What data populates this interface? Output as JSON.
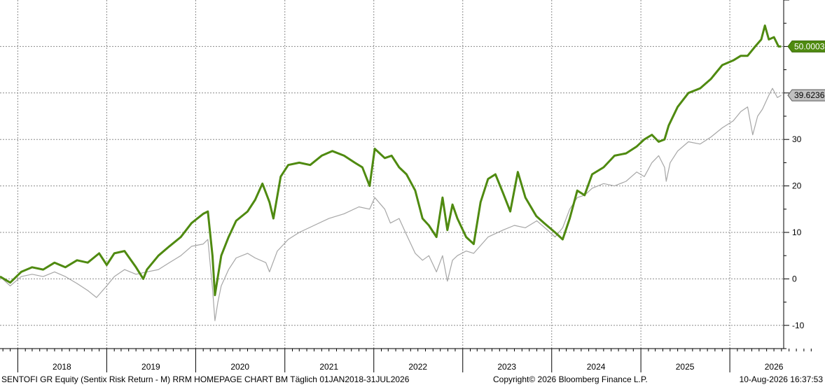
{
  "chart_data": {
    "type": "line",
    "x_range": [
      "2017-10-20",
      "2026-08-10"
    ],
    "ylim": [
      -15,
      60
    ],
    "y_ticks": [
      -10,
      0,
      10,
      20,
      30
    ],
    "x_tick_labels": [
      "2018",
      "2019",
      "2020",
      "2021",
      "2022",
      "2023",
      "2024",
      "2025",
      "2026"
    ],
    "grid": true,
    "series": [
      {
        "color": "#4f8a10",
        "last_value_label": "50.0003",
        "points": [
          [
            "2017-10-20",
            0.5
          ],
          [
            "2017-12-01",
            -0.8
          ],
          [
            "2018-01-15",
            1.5
          ],
          [
            "2018-03-01",
            2.5
          ],
          [
            "2018-04-15",
            2.0
          ],
          [
            "2018-06-01",
            3.5
          ],
          [
            "2018-07-15",
            2.5
          ],
          [
            "2018-09-01",
            4.0
          ],
          [
            "2018-10-15",
            3.5
          ],
          [
            "2018-12-01",
            5.5
          ],
          [
            "2019-01-01",
            3.0
          ],
          [
            "2019-02-01",
            5.5
          ],
          [
            "2019-03-15",
            6.0
          ],
          [
            "2019-05-01",
            2.5
          ],
          [
            "2019-05-31",
            0
          ],
          [
            "2019-06-15",
            2.0
          ],
          [
            "2019-08-01",
            5.0
          ],
          [
            "2019-09-15",
            7.0
          ],
          [
            "2019-11-01",
            9.0
          ],
          [
            "2019-12-15",
            12.0
          ],
          [
            "2020-02-01",
            14.0
          ],
          [
            "2020-02-20",
            14.5
          ],
          [
            "2020-03-10",
            5.0
          ],
          [
            "2020-03-20",
            -3.5
          ],
          [
            "2020-04-01",
            0.5
          ],
          [
            "2020-04-15",
            5.0
          ],
          [
            "2020-05-15",
            9.0
          ],
          [
            "2020-06-15",
            12.5
          ],
          [
            "2020-08-01",
            14.5
          ],
          [
            "2020-09-01",
            17.0
          ],
          [
            "2020-10-01",
            20.5
          ],
          [
            "2020-10-30",
            16.5
          ],
          [
            "2020-11-15",
            13.0
          ],
          [
            "2020-12-15",
            22.0
          ],
          [
            "2021-01-15",
            24.5
          ],
          [
            "2021-03-01",
            25.0
          ],
          [
            "2021-04-15",
            24.5
          ],
          [
            "2021-06-01",
            26.5
          ],
          [
            "2021-07-15",
            27.5
          ],
          [
            "2021-09-01",
            26.5
          ],
          [
            "2021-10-15",
            25.0
          ],
          [
            "2021-11-15",
            24.0
          ],
          [
            "2021-12-15",
            20.0
          ],
          [
            "2022-01-05",
            28.0
          ],
          [
            "2022-02-15",
            26.0
          ],
          [
            "2022-03-15",
            26.5
          ],
          [
            "2022-04-15",
            24.0
          ],
          [
            "2022-05-15",
            22.5
          ],
          [
            "2022-06-20",
            19.0
          ],
          [
            "2022-07-20",
            13.0
          ],
          [
            "2022-08-15",
            11.5
          ],
          [
            "2022-09-15",
            9.0
          ],
          [
            "2022-10-10",
            17.5
          ],
          [
            "2022-10-30",
            10.5
          ],
          [
            "2022-11-20",
            16.0
          ],
          [
            "2022-12-10",
            13.0
          ],
          [
            "2023-01-15",
            9.0
          ],
          [
            "2023-02-15",
            7.5
          ],
          [
            "2023-03-15",
            16.5
          ],
          [
            "2023-04-15",
            21.5
          ],
          [
            "2023-05-15",
            22.5
          ],
          [
            "2023-06-15",
            18.5
          ],
          [
            "2023-07-15",
            14.5
          ],
          [
            "2023-08-15",
            23.0
          ],
          [
            "2023-09-15",
            17.5
          ],
          [
            "2023-10-30",
            13.5
          ],
          [
            "2023-12-01",
            12.0
          ],
          [
            "2024-01-15",
            10.0
          ],
          [
            "2024-02-15",
            8.5
          ],
          [
            "2024-03-15",
            13.0
          ],
          [
            "2024-04-15",
            19.0
          ],
          [
            "2024-05-15",
            18.0
          ],
          [
            "2024-06-15",
            22.5
          ],
          [
            "2024-08-01",
            24.0
          ],
          [
            "2024-09-15",
            26.5
          ],
          [
            "2024-11-01",
            27.0
          ],
          [
            "2024-12-15",
            28.5
          ],
          [
            "2025-01-15",
            30.0
          ],
          [
            "2025-02-15",
            31.0
          ],
          [
            "2025-03-15",
            29.5
          ],
          [
            "2025-04-08",
            30.0
          ],
          [
            "2025-04-25",
            33.0
          ],
          [
            "2025-06-01",
            37.0
          ],
          [
            "2025-07-15",
            40.0
          ],
          [
            "2025-09-01",
            41.0
          ],
          [
            "2025-10-15",
            43.0
          ],
          [
            "2025-12-01",
            46.0
          ],
          [
            "2026-01-15",
            47.0
          ],
          [
            "2026-02-15",
            48.0
          ],
          [
            "2026-03-15",
            48.0
          ],
          [
            "2026-04-15",
            50.0
          ],
          [
            "2026-05-10",
            51.5
          ],
          [
            "2026-05-25",
            54.5
          ],
          [
            "2026-06-10",
            51.5
          ],
          [
            "2026-07-01",
            52.0
          ],
          [
            "2026-07-20",
            50.0
          ],
          [
            "2026-07-31",
            50.0
          ]
        ]
      },
      {
        "color": "#a6a6a6",
        "last_value_label": "39.6236",
        "points": [
          [
            "2017-10-20",
            0.5
          ],
          [
            "2017-12-01",
            -1.5
          ],
          [
            "2018-01-15",
            0.5
          ],
          [
            "2018-03-01",
            1.0
          ],
          [
            "2018-04-15",
            0.5
          ],
          [
            "2018-06-01",
            1.5
          ],
          [
            "2018-07-15",
            0.5
          ],
          [
            "2018-09-01",
            -1.0
          ],
          [
            "2018-10-15",
            -2.5
          ],
          [
            "2018-11-20",
            -4.0
          ],
          [
            "2019-01-01",
            -1.5
          ],
          [
            "2019-02-01",
            0.5
          ],
          [
            "2019-03-15",
            2.0
          ],
          [
            "2019-05-01",
            1.0
          ],
          [
            "2019-06-15",
            1.5
          ],
          [
            "2019-08-01",
            2.0
          ],
          [
            "2019-09-15",
            3.5
          ],
          [
            "2019-11-01",
            5.0
          ],
          [
            "2019-12-15",
            7.0
          ],
          [
            "2020-02-01",
            7.5
          ],
          [
            "2020-02-20",
            8.5
          ],
          [
            "2020-03-10",
            -2.0
          ],
          [
            "2020-03-20",
            -9.0
          ],
          [
            "2020-04-01",
            -5.0
          ],
          [
            "2020-04-15",
            -1.5
          ],
          [
            "2020-05-15",
            2.0
          ],
          [
            "2020-06-15",
            4.5
          ],
          [
            "2020-08-01",
            5.5
          ],
          [
            "2020-09-01",
            4.5
          ],
          [
            "2020-10-15",
            3.5
          ],
          [
            "2020-10-30",
            1.5
          ],
          [
            "2020-12-01",
            6.0
          ],
          [
            "2021-01-15",
            8.5
          ],
          [
            "2021-03-01",
            10.0
          ],
          [
            "2021-05-01",
            11.5
          ],
          [
            "2021-07-01",
            13.0
          ],
          [
            "2021-09-01",
            14.0
          ],
          [
            "2021-11-01",
            15.5
          ],
          [
            "2021-12-15",
            15.0
          ],
          [
            "2022-01-05",
            17.5
          ],
          [
            "2022-02-15",
            15.0
          ],
          [
            "2022-03-10",
            12.0
          ],
          [
            "2022-04-15",
            13.0
          ],
          [
            "2022-05-15",
            9.5
          ],
          [
            "2022-06-20",
            5.5
          ],
          [
            "2022-07-20",
            4.0
          ],
          [
            "2022-08-15",
            5.0
          ],
          [
            "2022-09-15",
            1.5
          ],
          [
            "2022-10-10",
            5.0
          ],
          [
            "2022-10-30",
            -0.5
          ],
          [
            "2022-11-20",
            4.0
          ],
          [
            "2022-12-10",
            5.0
          ],
          [
            "2023-01-15",
            6.0
          ],
          [
            "2023-02-15",
            5.5
          ],
          [
            "2023-04-15",
            9.0
          ],
          [
            "2023-06-15",
            10.5
          ],
          [
            "2023-08-01",
            11.5
          ],
          [
            "2023-09-15",
            11.0
          ],
          [
            "2023-11-01",
            12.5
          ],
          [
            "2023-12-15",
            10.5
          ],
          [
            "2024-01-15",
            9.0
          ],
          [
            "2024-02-15",
            11.0
          ],
          [
            "2024-03-15",
            15.0
          ],
          [
            "2024-04-15",
            17.5
          ],
          [
            "2024-05-15",
            18.0
          ],
          [
            "2024-06-15",
            19.5
          ],
          [
            "2024-08-01",
            20.5
          ],
          [
            "2024-09-15",
            20.0
          ],
          [
            "2024-11-01",
            21.0
          ],
          [
            "2024-12-15",
            23.0
          ],
          [
            "2025-01-15",
            22.0
          ],
          [
            "2025-02-15",
            25.0
          ],
          [
            "2025-03-15",
            26.5
          ],
          [
            "2025-04-08",
            24.0
          ],
          [
            "2025-04-15",
            21.0
          ],
          [
            "2025-05-01",
            25.0
          ],
          [
            "2025-06-01",
            27.5
          ],
          [
            "2025-07-15",
            29.5
          ],
          [
            "2025-09-01",
            29.0
          ],
          [
            "2025-10-15",
            30.5
          ],
          [
            "2025-12-01",
            32.5
          ],
          [
            "2026-01-15",
            34.0
          ],
          [
            "2026-02-15",
            36.0
          ],
          [
            "2026-03-15",
            37.0
          ],
          [
            "2026-04-05",
            31.0
          ],
          [
            "2026-04-25",
            35.0
          ],
          [
            "2026-05-15",
            36.5
          ],
          [
            "2026-06-10",
            39.5
          ],
          [
            "2026-06-25",
            41.0
          ],
          [
            "2026-07-15",
            39.0
          ],
          [
            "2026-07-31",
            39.5
          ]
        ]
      }
    ]
  },
  "footer": {
    "left": "SENTOFI GR Equity (Sentix Risk Return - M) RRM HOMEPAGE CHART BM Täglich 01JAN2018-31JUL2026",
    "center": "Copyright© 2026 Bloomberg Finance L.P.",
    "right": "10-Aug-2026 16:37:53"
  }
}
